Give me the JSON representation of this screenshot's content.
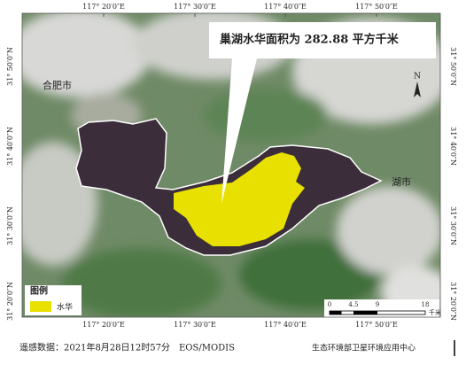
{
  "map": {
    "lon_labels": [
      "117° 20′0″E",
      "117° 30′0″E",
      "117° 40′0″E",
      "117° 50′0″E"
    ],
    "lat_labels": [
      "31° 50′0″N",
      "31° 40′0″N",
      "31° 30′0″N",
      "31° 20′0″N"
    ],
    "callout": "巢湖水华面积为 282.88 平方千米",
    "cities": [
      "合肥市",
      "湖市"
    ],
    "north": "N",
    "legend": {
      "title": "图例",
      "items": [
        "水华"
      ]
    },
    "scale": {
      "labels": [
        "0",
        "4.5",
        "9",
        "18"
      ],
      "unit": "千米"
    }
  },
  "footer": {
    "source": "遥感数据：2021年8月28日12时57分　EOS/MODIS",
    "agency": "生态环境部卫星环境应用中心"
  }
}
